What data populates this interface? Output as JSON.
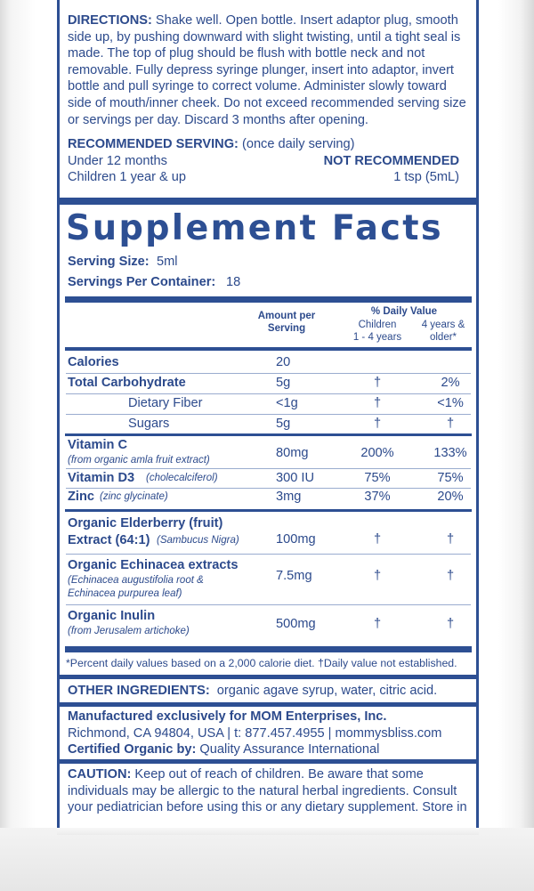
{
  "directions": {
    "label": "DIRECTIONS:",
    "text": "Shake well. Open bottle. Insert adaptor plug, smooth side up, by pushing downward with slight twisting, until a tight seal is made. The top of plug should be flush with bottle neck and not removable. Fully depress syringe plunger, insert into adaptor, invert bottle and pull syringe to correct volume. Administer slowly toward side of mouth/inner cheek. Do not exceed recommended serving size or servings per day. Discard 3 months after opening."
  },
  "recommended": {
    "label": "RECOMMENDED SERVING:",
    "note": "(once daily serving)",
    "rows": [
      {
        "who": "Under 12 months",
        "amount": "NOT RECOMMENDED"
      },
      {
        "who": "Children 1 year & up",
        "amount": "1 tsp (5mL)"
      }
    ]
  },
  "facts": {
    "title": "Supplement Facts",
    "serving_size_label": "Serving Size:",
    "serving_size": "5ml",
    "servings_label": "Servings Per Container:",
    "servings": "18",
    "header": {
      "amount_line1": "Amount per",
      "amount_line2": "Serving",
      "dv": "% Daily Value",
      "col1_line1": "Children",
      "col1_line2": "1 - 4 years",
      "col2_line1": "4 years &",
      "col2_line2": "older*"
    },
    "rows": [
      {
        "name": "Calories",
        "amount": "20",
        "c1": "",
        "c2": ""
      },
      {
        "name": "Total Carbohydrate",
        "amount": "5g",
        "c1": "†",
        "c2": "2%"
      },
      {
        "name": "Dietary Fiber",
        "amount": "<1g",
        "c1": "†",
        "c2": "<1%"
      },
      {
        "name": "Sugars",
        "amount": "5g",
        "c1": "†",
        "c2": "†"
      },
      {
        "name": "Vitamin C",
        "sub": "(from organic amla fruit extract)",
        "amount": "80mg",
        "c1": "200%",
        "c2": "133%"
      },
      {
        "name": "Vitamin D3",
        "sub": "(cholecalciferol)",
        "amount": "300 IU",
        "c1": "75%",
        "c2": "75%"
      },
      {
        "name": "Zinc",
        "sub": "(zinc glycinate)",
        "amount": "3mg",
        "c1": "37%",
        "c2": "20%"
      },
      {
        "name": "Organic Elderberry (fruit)",
        "name2": "Extract (64:1)",
        "sub": "(Sambucus Nigra)",
        "amount": "100mg",
        "c1": "†",
        "c2": "†"
      },
      {
        "name": "Organic Echinacea extracts",
        "sub": "(Echinacea augustifolia root &",
        "sub2": "Echinacea purpurea leaf)",
        "amount": "7.5mg",
        "c1": "†",
        "c2": "†"
      },
      {
        "name": "Organic Inulin",
        "sub": "(from Jerusalem artichoke)",
        "amount": "500mg",
        "c1": "†",
        "c2": "†"
      }
    ],
    "footnote": "*Percent daily values based on a 2,000 calorie diet.   †Daily value not established."
  },
  "other": {
    "label": "OTHER INGREDIENTS:",
    "text": "organic agave syrup, water, citric acid."
  },
  "manufacturer": {
    "line1": "Manufactured exclusively for MOM Enterprises, Inc.",
    "line2": "Richmond, CA 94804, USA | t: 877.457.4955 | mommysbliss.com",
    "cert_label": "Certified Organic by:",
    "cert": "Quality Assurance International"
  },
  "caution": {
    "label": "CAUTION:",
    "text": "Keep out of reach of children. Be aware that some individuals may be allergic to the natural herbal ingredients. Consult your pediatrician before using this or any dietary supplement. Store in"
  },
  "colors": {
    "brand_blue": "#2d4f93"
  }
}
